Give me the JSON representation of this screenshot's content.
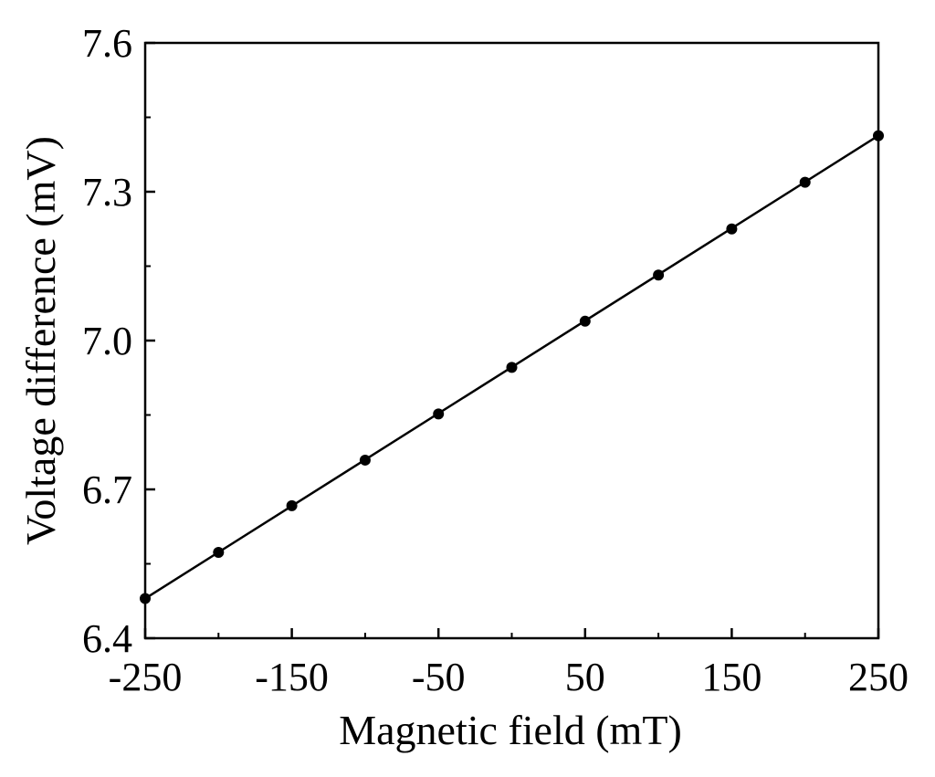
{
  "chart_data": {
    "type": "scatter",
    "title": "",
    "xlabel": "Magnetic field (mT)",
    "ylabel": "Voltage difference (mV)",
    "xlim": [
      -250,
      250
    ],
    "ylim": [
      6.4,
      7.6
    ],
    "xticks": [
      -250,
      -150,
      -50,
      50,
      150,
      250
    ],
    "xtick_labels": [
      "-250",
      "-150",
      "-50",
      "50",
      "150",
      "250"
    ],
    "yticks": [
      6.4,
      6.7,
      7.0,
      7.3,
      7.6
    ],
    "ytick_labels": [
      "6.4",
      "6.7",
      "7.0",
      "7.3",
      "7.6"
    ],
    "grid": false,
    "series": [
      {
        "marker": "filled-circle",
        "color": "#000000",
        "x": [
          -250,
          -200,
          -150,
          -100,
          -50,
          0,
          50,
          100,
          150,
          200,
          250
        ],
        "y": [
          6.48,
          6.573,
          6.667,
          6.759,
          6.852,
          6.946,
          7.039,
          7.132,
          7.225,
          7.319,
          7.413
        ]
      }
    ],
    "fit_line": {
      "x": [
        -250,
        250
      ],
      "y": [
        6.48,
        7.413
      ],
      "color": "#000000"
    }
  }
}
